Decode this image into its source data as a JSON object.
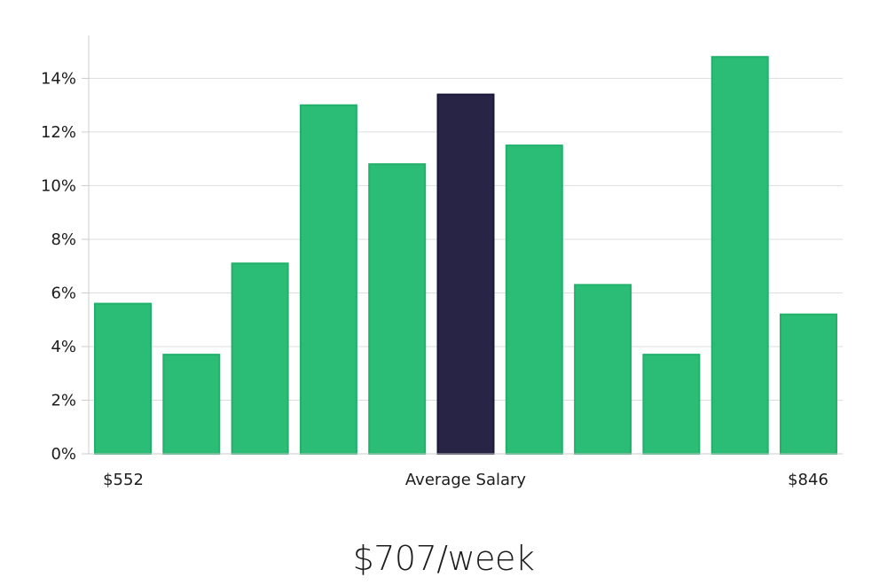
{
  "chart_data": {
    "type": "bar",
    "values": [
      5.6,
      3.7,
      7.1,
      13.0,
      10.8,
      13.4,
      11.5,
      6.3,
      3.7,
      14.8,
      5.2
    ],
    "highlight_index": 5,
    "x_labels": {
      "left": "$552",
      "center": "Average Salary",
      "right": "$846"
    },
    "yticks": [
      "0%",
      "2%",
      "4%",
      "6%",
      "8%",
      "10%",
      "12%",
      "14%"
    ],
    "ytick_values": [
      0,
      2,
      4,
      6,
      8,
      10,
      12,
      14
    ],
    "ylim": [
      0,
      15.6
    ],
    "grid": true
  },
  "summary": {
    "average_weekly": "$707/week"
  },
  "colors": {
    "bar": "#2bbd76",
    "bar_highlight": "#272446",
    "grid": "#dddddd",
    "axis": "#cccccc",
    "text": "#1c1c1c"
  }
}
